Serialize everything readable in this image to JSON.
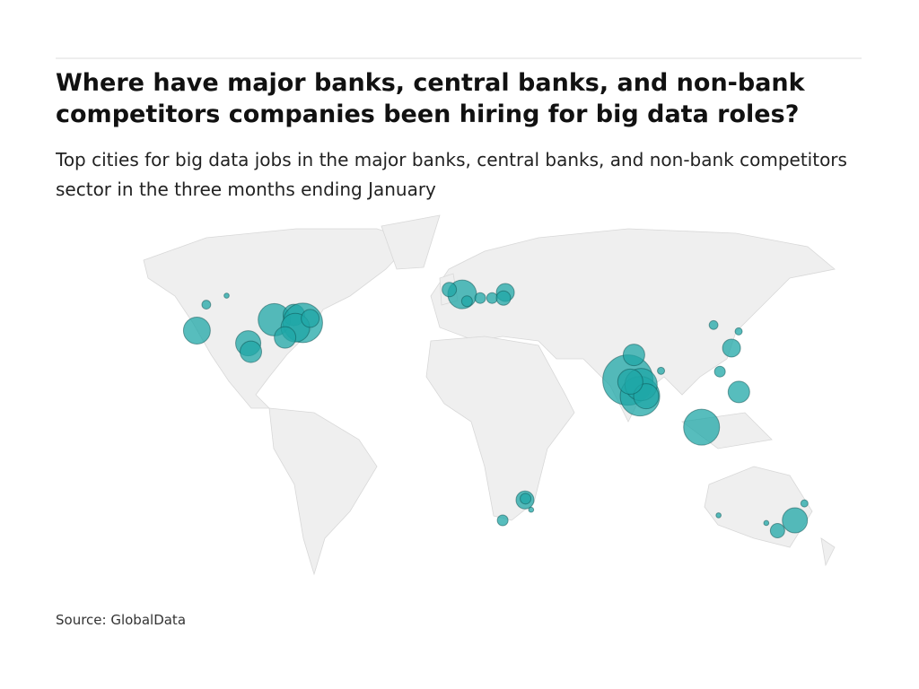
{
  "chart_data": {
    "type": "bubble-map",
    "title": "Where have major banks, central banks, and non-bank competitors companies been hiring for big data roles?",
    "subtitle": "Top cities for big data jobs in the major banks, central banks, and non-bank competitors sector in the three months ending January",
    "source": "Source: GlobalData",
    "color": "#1fa7a7",
    "points": [
      {
        "lon": -114,
        "lat": 51,
        "value": 2
      },
      {
        "lon": -122,
        "lat": 47.6,
        "value": 6
      },
      {
        "lon": -122,
        "lat": 37.8,
        "value": 56
      },
      {
        "lon": -97,
        "lat": 33,
        "value": 49
      },
      {
        "lon": -95,
        "lat": 29.8,
        "value": 36
      },
      {
        "lon": -87.6,
        "lat": 41.9,
        "value": 81
      },
      {
        "lon": -79,
        "lat": 43.7,
        "value": 36
      },
      {
        "lon": -74,
        "lat": 40.7,
        "value": 121
      },
      {
        "lon": -77,
        "lat": 38.9,
        "value": 64
      },
      {
        "lon": -80.8,
        "lat": 35.2,
        "value": 36
      },
      {
        "lon": -71,
        "lat": 42.4,
        "value": 25
      },
      {
        "lon": 0,
        "lat": 51.5,
        "value": 64
      },
      {
        "lon": -6.3,
        "lat": 53.3,
        "value": 16
      },
      {
        "lon": 2.3,
        "lat": 48.9,
        "value": 9
      },
      {
        "lon": 8.7,
        "lat": 50.1,
        "value": 9
      },
      {
        "lon": 21,
        "lat": 52.2,
        "value": 25
      },
      {
        "lon": 14.4,
        "lat": 50.1,
        "value": 9
      },
      {
        "lon": 19.9,
        "lat": 50.1,
        "value": 16
      },
      {
        "lon": 72.9,
        "lat": 19.1,
        "value": 196
      },
      {
        "lon": 77.6,
        "lat": 13,
        "value": 121
      },
      {
        "lon": 78.5,
        "lat": 17.4,
        "value": 81
      },
      {
        "lon": 80.3,
        "lat": 13,
        "value": 49
      },
      {
        "lon": 73.9,
        "lat": 18.5,
        "value": 49
      },
      {
        "lon": 77,
        "lat": 28.6,
        "value": 36
      },
      {
        "lon": 88,
        "lat": 22.6,
        "value": 4
      },
      {
        "lon": 103.8,
        "lat": 1.3,
        "value": 100
      },
      {
        "lon": 121,
        "lat": 14.6,
        "value": 36
      },
      {
        "lon": 114,
        "lat": 22.3,
        "value": 9
      },
      {
        "lon": 121.5,
        "lat": 31.2,
        "value": 25
      },
      {
        "lon": 116.4,
        "lat": 39.9,
        "value": 6
      },
      {
        "lon": 127,
        "lat": 37.5,
        "value": 4
      },
      {
        "lon": 28,
        "lat": -26.2,
        "value": 25
      },
      {
        "lon": 28.2,
        "lat": -25.7,
        "value": 9
      },
      {
        "lon": 18.4,
        "lat": -33.9,
        "value": 9
      },
      {
        "lon": 31,
        "lat": -29.9,
        "value": 2
      },
      {
        "lon": 151.2,
        "lat": -33.9,
        "value": 49
      },
      {
        "lon": 145,
        "lat": -37.8,
        "value": 16
      },
      {
        "lon": 153,
        "lat": -27.5,
        "value": 4
      },
      {
        "lon": 115.9,
        "lat": -32,
        "value": 2
      },
      {
        "lon": 138.6,
        "lat": -34.9,
        "value": 2
      }
    ]
  }
}
